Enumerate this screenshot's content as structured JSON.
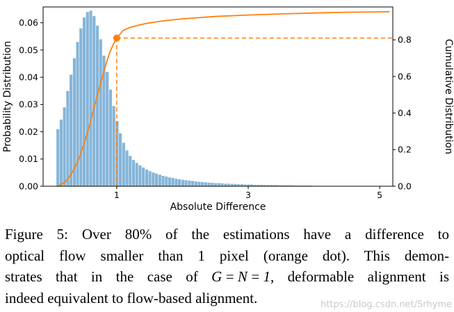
{
  "figure": {
    "caption": {
      "line1": "Figure 5: Over 80% of the estimations have a difference to",
      "line2": "optical flow smaller than 1 pixel (orange dot). This demon-",
      "line3_prefix": "strates that in the case of ",
      "line3_math": "G = N = 1",
      "line3_suffix": ", deformable alignment is",
      "line4": "indeed equivalent to flow-based alignment."
    },
    "watermark": "https://blog.csdn.net/Srhyme"
  },
  "chart_data": {
    "type": "histogram+line",
    "title": "",
    "xlabel": "Absolute Difference",
    "ylabel_left": "Probability Distribution",
    "ylabel_right": "Cumulative Distribution",
    "xlim": [
      -0.12,
      5.2
    ],
    "ylim_left": [
      0,
      0.0658
    ],
    "ylim_right": [
      0,
      0.98
    ],
    "x_tick_values": [
      1,
      3,
      5
    ],
    "x_tick_labels": [
      "1",
      "3",
      "5"
    ],
    "y_left_tick_values": [
      0,
      0.01,
      0.02,
      0.03,
      0.04,
      0.05,
      0.06
    ],
    "y_left_tick_labels": [
      "0.00",
      "0.01",
      "0.02",
      "0.03",
      "0.04",
      "0.05",
      "0.06"
    ],
    "y_right_tick_values": [
      0,
      0.2,
      0.4,
      0.6,
      0.8
    ],
    "y_right_tick_labels": [
      "0.0",
      "0.2",
      "0.4",
      "0.6",
      "0.8"
    ],
    "grid": false,
    "legend": "none",
    "histogram": {
      "color": "#85b5d9",
      "edge_color": "#ffffff",
      "bin_start": 0.08,
      "bin_width": 0.05,
      "values": [
        0.021,
        0.0245,
        0.029,
        0.035,
        0.041,
        0.047,
        0.053,
        0.058,
        0.062,
        0.064,
        0.0645,
        0.0625,
        0.059,
        0.054,
        0.048,
        0.042,
        0.0355,
        0.0295,
        0.024,
        0.0195,
        0.016,
        0.0132,
        0.0112,
        0.0097,
        0.0086,
        0.0077,
        0.0069,
        0.0062,
        0.0056,
        0.0051,
        0.0047,
        0.0043,
        0.0039,
        0.0036,
        0.0033,
        0.0031,
        0.0028,
        0.0026,
        0.0024,
        0.0023,
        0.0021,
        0.002,
        0.0018,
        0.0017,
        0.0016,
        0.0015,
        0.0014,
        0.0013,
        0.0012,
        0.0012,
        0.0011,
        0.001,
        0.001,
        0.0009,
        0.0009,
        0.0008,
        0.0008,
        0.0007,
        0.0007,
        0.0007,
        0.0006,
        0.0006,
        0.0006,
        0.0005,
        0.0005,
        0.0005,
        0.0005,
        0.0004,
        0.0004,
        0.0004,
        0.0004,
        0.0004,
        0.0003,
        0.0003,
        0.0003,
        0.0003,
        0.0003,
        0.0003,
        0.0002,
        0.0002,
        0.0002,
        0.0002,
        0.0002,
        0.0002,
        0.0002,
        0.0002,
        0.0002,
        0.0001,
        0.0001,
        0.0001,
        0.0001,
        0.0001,
        0.0001,
        0.0001,
        0.0001,
        0.0001,
        0.0001,
        0.0001,
        0.0001,
        0.0001,
        0.0001,
        0.0001
      ]
    },
    "cdf": {
      "color": "#ff7f0e",
      "x": [
        0.1,
        0.15,
        0.2,
        0.25,
        0.3,
        0.35,
        0.4,
        0.45,
        0.5,
        0.55,
        0.6,
        0.65,
        0.7,
        0.75,
        0.8,
        0.85,
        0.9,
        0.95,
        1.0,
        1.1,
        1.2,
        1.35,
        1.5,
        1.75,
        2.0,
        2.5,
        3.0,
        3.5,
        4.0,
        4.5,
        5.0,
        5.15
      ],
      "y": [
        0.0,
        0.008,
        0.02,
        0.038,
        0.062,
        0.093,
        0.131,
        0.176,
        0.228,
        0.287,
        0.352,
        0.42,
        0.489,
        0.557,
        0.622,
        0.683,
        0.737,
        0.777,
        0.81,
        0.852,
        0.868,
        0.882,
        0.893,
        0.906,
        0.915,
        0.928,
        0.936,
        0.942,
        0.947,
        0.951,
        0.953,
        0.954
      ]
    },
    "marker": {
      "x": 1.0,
      "y": 0.81,
      "color": "#ff7f0e",
      "meaning": "orange dot: over 80% of estimations below 1 pixel difference"
    },
    "dashed_guides": {
      "x": 1.0,
      "y": 0.81,
      "color": "#ff7f0e"
    }
  }
}
